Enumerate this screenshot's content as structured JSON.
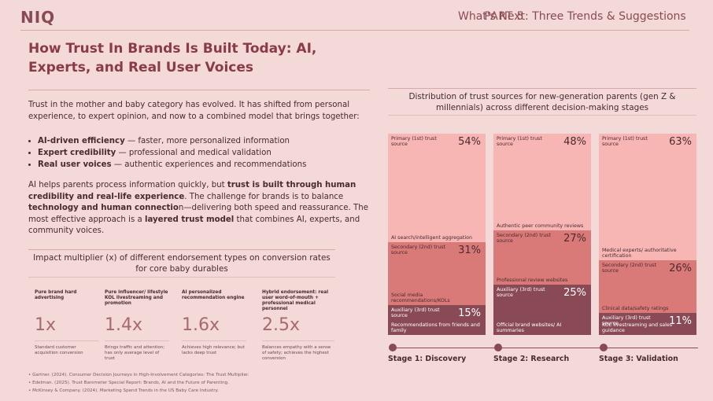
{
  "header": {
    "logo": "NIQ",
    "part": "PART 5",
    "section_title": "What's Next: Three Trends & Suggestions"
  },
  "left": {
    "title": "How Trust In Brands Is Built Today: AI, Experts, and Real User Voices",
    "intro": "Trust in the mother and baby category has evolved. It has shifted from personal experience, to expert opinion, and now to a combined model that brings together:",
    "bullets": [
      {
        "bold": "AI-driven efficiency",
        "rest": " — faster, more personalized information"
      },
      {
        "bold": "Expert credibility",
        "rest": " — professional and medical validation"
      },
      {
        "bold": "Real user voices",
        "rest": " — authentic experiences and recommendations"
      }
    ],
    "para": {
      "t1": "AI helps parents process information quickly, but ",
      "b1": "trust is built through human credibility and real-life experience",
      "t2": ". The challenge for brands is to balance ",
      "b2": "technology and human connectio",
      "t3": "n—delivering both speed and reassurance. The most effective approach is a ",
      "b3": "layered trust model",
      "t4": " that combines AI, experts, and community voices."
    }
  },
  "multiplier": {
    "title": "Impact multiplier (x) of different endorsement types on conversion rates for core baby durables",
    "items": [
      {
        "label": "Pure brand hard advertising",
        "value": "1x",
        "desc": "Standard customer acquisition conversion"
      },
      {
        "label": "Pure influencer/ lifestyle KOL livestreaming and promotion",
        "value": "1.4x",
        "desc": "Brings traffic and attention; has only average level of trust"
      },
      {
        "label": "AI personalized recommendation engine",
        "value": "1.6x",
        "desc": "Achieves high relevance; but lacks deep trust"
      },
      {
        "label": "Hybrid endorsement: real user word-of-mouth + professional medical personnel",
        "value": "2.5x",
        "desc": "Balances empathy with a sense of safety; achieves the highest conversion"
      }
    ]
  },
  "footnotes": [
    "• Gartner. (2024). Consumer Decision Journeys in High-Involvement Categories: The Trust Multiplier.",
    "• Edelman. (2025). Trust Barometer Special Report: Brands, AI and the Future of Parenting.",
    "• McKinsey & Company. (2024). Marketing Spend Trends in the US Baby Care Industry."
  ],
  "chart_data": {
    "type": "bar",
    "title": "Distribution of trust sources for new-generation parents (gen Z & millennials) across different decision-making stages",
    "categories": [
      "Stage 1: Discovery",
      "Stage 2: Research",
      "Stage 3: Validation"
    ],
    "stacked": true,
    "series": [
      {
        "name": "Primary (1st) trust source",
        "values": [
          54,
          48,
          63
        ],
        "sources": [
          "AI search/intelligent aggregation",
          "Authentic peer community reviews",
          "Medical experts/ authoritative certification"
        ]
      },
      {
        "name": "Secondary (2nd) trust source",
        "values": [
          31,
          27,
          26
        ],
        "sources": [
          "Social media recommendations/KOLs",
          "Professional review websites",
          "Clinical data/safety ratings"
        ]
      },
      {
        "name": "Auxiliary (3rd) trust source",
        "values": [
          15,
          25,
          11
        ],
        "sources": [
          "Recommendations from friends and family",
          "Official brand websites/ AI summaries",
          "KOL livestreaming and sales guidance"
        ]
      }
    ],
    "colors": [
      "#f7b6b4",
      "#d97a78",
      "#8a4a55"
    ]
  }
}
